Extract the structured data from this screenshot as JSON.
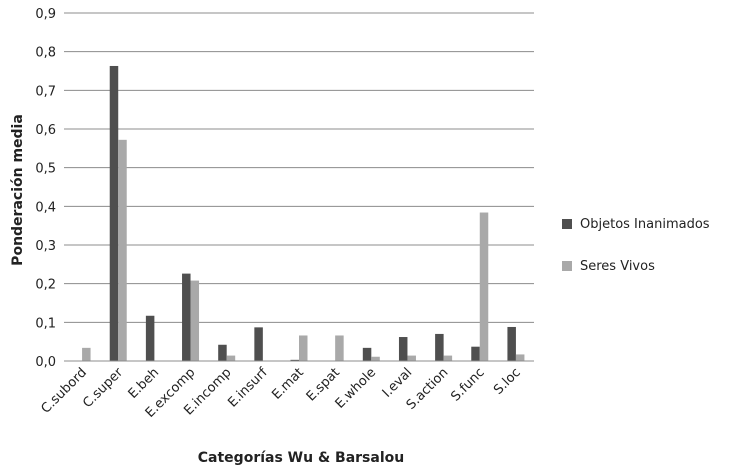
{
  "chart_data": {
    "type": "bar",
    "xlabel": "Categorías Wu & Barsalou",
    "ylabel": "Ponderación media",
    "ylim": [
      0,
      0.9
    ],
    "yticks": [
      "0,0",
      "0,1",
      "0,2",
      "0,3",
      "0,4",
      "0,5",
      "0,6",
      "0,7",
      "0,8",
      "0,9"
    ],
    "grid": true,
    "legend_position": "right",
    "categories": [
      "C.subord",
      "C.super",
      "E.beh",
      "E.excomp",
      "E.incomp",
      "E.insurf",
      "E.mat",
      "E.spat",
      "E.whole",
      "I.eval",
      "S.action",
      "S.func",
      "S.loc"
    ],
    "series": [
      {
        "name": "Objetos Inanimados",
        "color": "#4f4f4f",
        "values": [
          0.0,
          0.763,
          0.117,
          0.226,
          0.042,
          0.087,
          0.003,
          0.0,
          0.034,
          0.062,
          0.07,
          0.037,
          0.088
        ]
      },
      {
        "name": "Seres Vivos",
        "color": "#a9a9a9",
        "values": [
          0.034,
          0.572,
          0.0,
          0.208,
          0.014,
          0.0,
          0.066,
          0.066,
          0.011,
          0.014,
          0.014,
          0.384,
          0.017
        ]
      }
    ]
  }
}
